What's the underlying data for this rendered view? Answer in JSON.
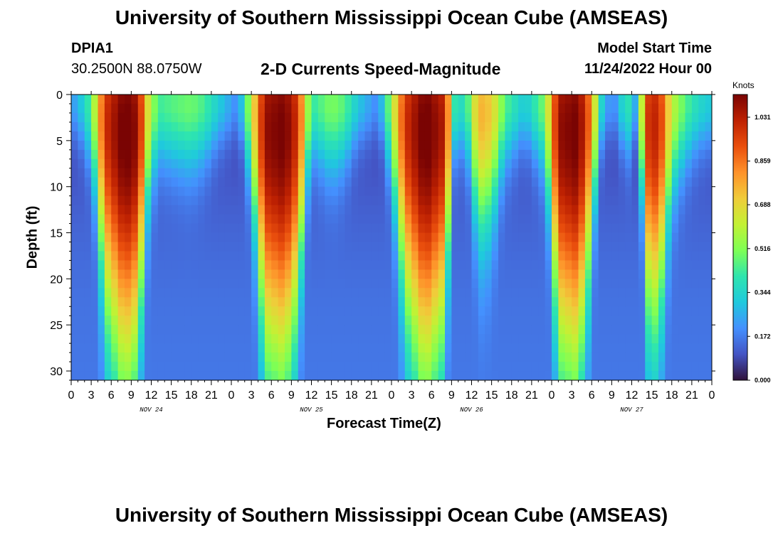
{
  "title_top": "University of Southern Mississippi Ocean Cube (AMSEAS)",
  "title_bottom": "University of Southern Mississippi Ocean Cube (AMSEAS)",
  "station": {
    "id": "DPIA1",
    "coords": "30.2500N  88.0750W"
  },
  "subtitle": "2-D Currents Speed-Magnitude",
  "model_start": {
    "label": "Model Start Time",
    "value": "11/24/2022 Hour 00"
  },
  "colors": {
    "colormap": [
      "#30123b",
      "#4454c4",
      "#4490fe",
      "#1fc9dd",
      "#2ee5ae",
      "#7eff55",
      "#c3f134",
      "#f0cc3a",
      "#fe922a",
      "#ea4f0d",
      "#be2102",
      "#7a0403"
    ]
  },
  "chart_data": {
    "type": "heatmap",
    "title": "2-D Currents Speed-Magnitude",
    "xlabel": "Forecast Time(Z)",
    "ylabel": "Depth (ft)",
    "x_range_hours": [
      0,
      96
    ],
    "y_range_ft": [
      0,
      31
    ],
    "y_inverted": true,
    "xticks": [
      "0",
      "3",
      "6",
      "9",
      "12",
      "15",
      "18",
      "21",
      "0",
      "3",
      "6",
      "9",
      "12",
      "15",
      "18",
      "21",
      "0",
      "3",
      "6",
      "9",
      "12",
      "15",
      "18",
      "21",
      "0",
      "3",
      "6",
      "9",
      "12",
      "15",
      "18",
      "21",
      "0"
    ],
    "yticks": [
      "0",
      "5",
      "10",
      "15",
      "20",
      "25",
      "30"
    ],
    "date_labels": [
      {
        "label": "NOV 24",
        "hour": 12
      },
      {
        "label": "NOV 25",
        "hour": 36
      },
      {
        "label": "NOV 26",
        "hour": 60
      },
      {
        "label": "NOV 27",
        "hour": 84
      }
    ],
    "colorbar": {
      "unit": "Knots",
      "min": 0.0,
      "max": 1.12,
      "ticks": [
        "0.000",
        "0.172",
        "0.344",
        "0.516",
        "0.688",
        "0.859",
        "1.031"
      ]
    },
    "surface_speed_knots": [
      {
        "hour": 0,
        "value": 0.2
      },
      {
        "hour": 1.5,
        "value": 0.3
      },
      {
        "hour": 3,
        "value": 0.45
      },
      {
        "hour": 5,
        "value": 0.95
      },
      {
        "hour": 8,
        "value": 1.12
      },
      {
        "hour": 10,
        "value": 1.05
      },
      {
        "hour": 11.5,
        "value": 0.65
      },
      {
        "hour": 13,
        "value": 0.42
      },
      {
        "hour": 16,
        "value": 0.46
      },
      {
        "hour": 18,
        "value": 0.48
      },
      {
        "hour": 20,
        "value": 0.43
      },
      {
        "hour": 22,
        "value": 0.32
      },
      {
        "hour": 25,
        "value": 0.18
      },
      {
        "hour": 27,
        "value": 0.6
      },
      {
        "hour": 29,
        "value": 1.05
      },
      {
        "hour": 32,
        "value": 1.1
      },
      {
        "hour": 34,
        "value": 0.95
      },
      {
        "hour": 36,
        "value": 0.4
      },
      {
        "hour": 39,
        "value": 0.5
      },
      {
        "hour": 41,
        "value": 0.45
      },
      {
        "hour": 43,
        "value": 0.3
      },
      {
        "hour": 46,
        "value": 0.18
      },
      {
        "hour": 48,
        "value": 0.55
      },
      {
        "hour": 50,
        "value": 0.95
      },
      {
        "hour": 53,
        "value": 1.12
      },
      {
        "hour": 56,
        "value": 1.0
      },
      {
        "hour": 57.5,
        "value": 0.4
      },
      {
        "hour": 59,
        "value": 0.35
      },
      {
        "hour": 61,
        "value": 0.75
      },
      {
        "hour": 63,
        "value": 0.7
      },
      {
        "hour": 65,
        "value": 0.45
      },
      {
        "hour": 68,
        "value": 0.3
      },
      {
        "hour": 71,
        "value": 0.5
      },
      {
        "hour": 73,
        "value": 1.05
      },
      {
        "hour": 76,
        "value": 1.1
      },
      {
        "hour": 78,
        "value": 0.8
      },
      {
        "hour": 79,
        "value": 0.45
      },
      {
        "hour": 80,
        "value": 0.22
      },
      {
        "hour": 82,
        "value": 0.2
      },
      {
        "hour": 83,
        "value": 0.45
      },
      {
        "hour": 84.5,
        "value": 0.25
      },
      {
        "hour": 85.5,
        "value": 0.6
      },
      {
        "hour": 86.5,
        "value": 0.95
      },
      {
        "hour": 88,
        "value": 1.0
      },
      {
        "hour": 89,
        "value": 0.8
      },
      {
        "hour": 90,
        "value": 0.6
      },
      {
        "hour": 92,
        "value": 0.45
      },
      {
        "hour": 94,
        "value": 0.35
      },
      {
        "hour": 96,
        "value": 0.3
      }
    ]
  }
}
